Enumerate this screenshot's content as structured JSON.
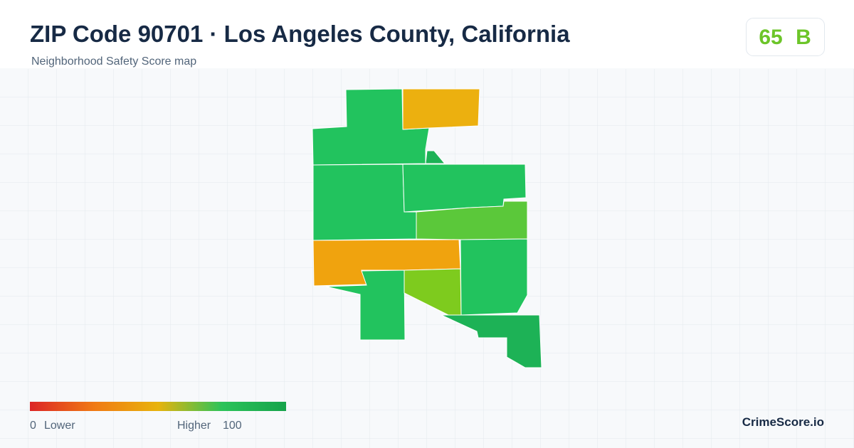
{
  "header": {
    "title": "ZIP Code 90701 · Los Angeles County, California",
    "subtitle": "Neighborhood Safety Score map"
  },
  "badge": {
    "score": "65",
    "grade": "B"
  },
  "legend": {
    "min": "0",
    "min_label": "Lower",
    "max_label": "Higher",
    "max": "100"
  },
  "brand": "CrimeScore.io"
}
